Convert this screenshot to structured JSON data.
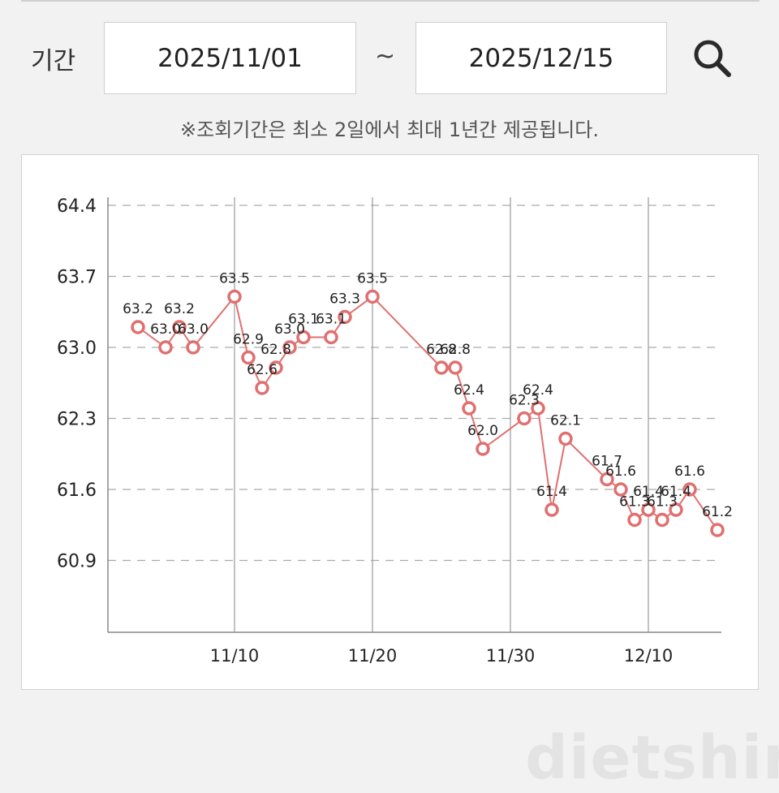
{
  "filter": {
    "period_label": "기간",
    "start_date": "2025/11/01",
    "separator": "~",
    "end_date": "2025/12/15",
    "notice": "※조회기간은 최소 2일에서 최대 1년간 제공됩니다."
  },
  "icons": {
    "search": "search-icon"
  },
  "watermark": "dietshin.com",
  "colors": {
    "line": "#e07070",
    "marker_stroke": "#e07070",
    "marker_fill": "#ffffff",
    "grid": "#aaaaaa"
  },
  "chart_data": {
    "type": "line",
    "x_type": "date",
    "ylim": [
      60.3,
      64.4
    ],
    "y_ticks": [
      "64.4",
      "63.7",
      "63.0",
      "62.3",
      "61.6",
      "60.9"
    ],
    "x_ticks": [
      {
        "date": "2025-11-10",
        "label": "11/10"
      },
      {
        "date": "2025-11-20",
        "label": "11/20"
      },
      {
        "date": "2025-11-30",
        "label": "11/30"
      },
      {
        "date": "2025-12-10",
        "label": "12/10"
      }
    ],
    "xlim": [
      "2025-11-01",
      "2025-12-15"
    ],
    "grid": true,
    "series": [
      {
        "points": [
          {
            "x": "2025-11-03",
            "y": 63.2
          },
          {
            "x": "2025-11-05",
            "y": 63.0
          },
          {
            "x": "2025-11-06",
            "y": 63.2
          },
          {
            "x": "2025-11-07",
            "y": 63.0
          },
          {
            "x": "2025-11-10",
            "y": 63.5
          },
          {
            "x": "2025-11-11",
            "y": 62.9
          },
          {
            "x": "2025-11-12",
            "y": 62.6
          },
          {
            "x": "2025-11-13",
            "y": 62.8
          },
          {
            "x": "2025-11-14",
            "y": 63.0
          },
          {
            "x": "2025-11-15",
            "y": 63.1
          },
          {
            "x": "2025-11-17",
            "y": 63.1
          },
          {
            "x": "2025-11-18",
            "y": 63.3
          },
          {
            "x": "2025-11-20",
            "y": 63.5
          },
          {
            "x": "2025-11-25",
            "y": 62.8
          },
          {
            "x": "2025-11-26",
            "y": 62.8
          },
          {
            "x": "2025-11-27",
            "y": 62.4
          },
          {
            "x": "2025-11-28",
            "y": 62.0
          },
          {
            "x": "2025-12-01",
            "y": 62.3
          },
          {
            "x": "2025-12-02",
            "y": 62.4
          },
          {
            "x": "2025-12-03",
            "y": 61.4
          },
          {
            "x": "2025-12-04",
            "y": 62.1
          },
          {
            "x": "2025-12-07",
            "y": 61.7
          },
          {
            "x": "2025-12-08",
            "y": 61.6
          },
          {
            "x": "2025-12-09",
            "y": 61.3
          },
          {
            "x": "2025-12-10",
            "y": 61.4
          },
          {
            "x": "2025-12-11",
            "y": 61.3
          },
          {
            "x": "2025-12-12",
            "y": 61.4
          },
          {
            "x": "2025-12-13",
            "y": 61.6
          },
          {
            "x": "2025-12-15",
            "y": 61.2
          }
        ]
      }
    ]
  }
}
